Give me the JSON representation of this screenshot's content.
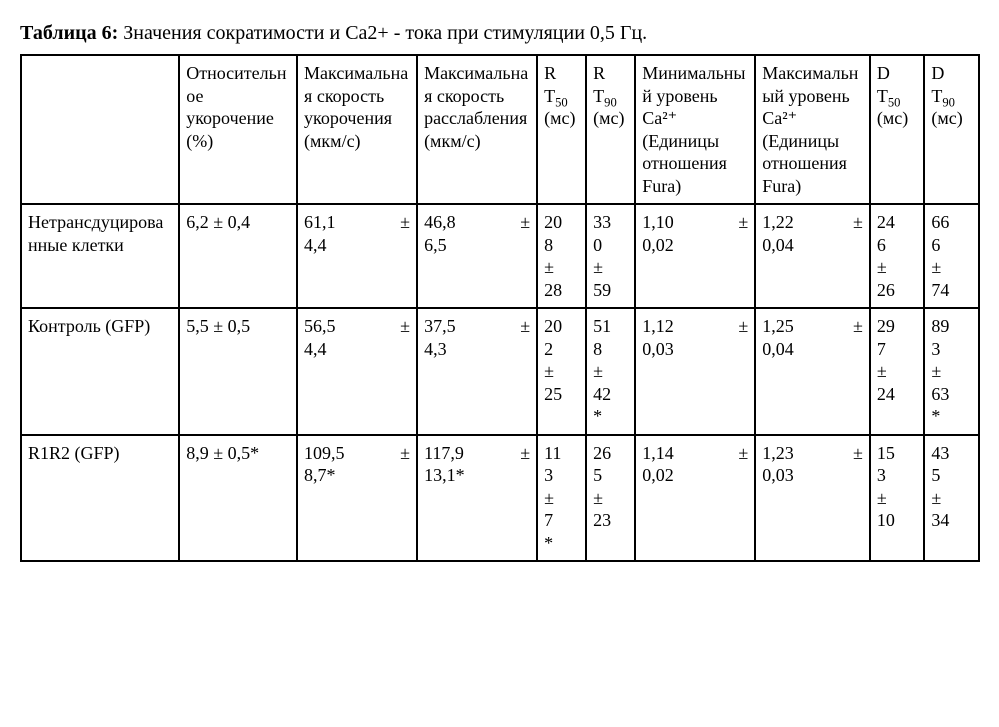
{
  "caption_label": "Таблица 6:",
  "caption_text": " Значения сократимости и Ca2+ - тока при стимуляции 0,5 Гц.",
  "table": {
    "headers": {
      "rowlabel": "",
      "otn": "Относительное укорочение (%)",
      "maxshort": "Максимальная скорость укорочения (мкм/с)",
      "maxrelax": "Максимальная скорость расслабления (мкм/с)",
      "rt5_a": "R",
      "rt5_b": "T",
      "rt5_sub": "50",
      "rt5_c": "(мс)",
      "rt9_a": "R",
      "rt9_b": "T",
      "rt9_sub": "90",
      "rt9_c": "(мс)",
      "minca": "Минимальный уровень Ca²⁺ (Единицы отношения Fura)",
      "maxca": "Максимальный уровень Ca²⁺ (Единицы отношения Fura)",
      "dt50_a": "D",
      "dt50_b": "T",
      "dt50_sub": "50",
      "dt50_c": "(мс)",
      "dt90_a": "D",
      "dt90_b": "T",
      "dt90_sub": "90",
      "dt90_c": "(мс)"
    },
    "pm": "±",
    "rows": [
      {
        "label": "Нетрансдуцированные клетки",
        "otn": "6,2 ± 0,4",
        "maxshort_a": "61,1",
        "maxshort_b": "4,4",
        "maxrelax_a": "46,8",
        "maxrelax_b": "6,5",
        "rt5": "208 ± 28",
        "rt9": "330 ± 59",
        "minca_a": "1,10",
        "minca_b": "0,02",
        "maxca_a": "1,22",
        "maxca_b": "0,04",
        "dt50": "246 ± 26",
        "dt90": "666 ± 74"
      },
      {
        "label": "Контроль (GFP)",
        "otn": "5,5 ± 0,5",
        "maxshort_a": "56,5",
        "maxshort_b": "4,4",
        "maxrelax_a": "37,5",
        "maxrelax_b": "4,3",
        "rt5": "202 ± 25",
        "rt9": "518 ± 42*",
        "minca_a": "1,12",
        "minca_b": "0,03",
        "maxca_a": "1,25",
        "maxca_b": "0,04",
        "dt50": "297 ± 24",
        "dt90": "893 ± 63*"
      },
      {
        "label": "R1R2 (GFP)",
        "otn": "8,9 ± 0,5*",
        "maxshort_a": "109,5",
        "maxshort_b": "8,7*",
        "maxrelax_a": "117,9",
        "maxrelax_b": "13,1*",
        "rt5": "113 ± 7*",
        "rt9": "265 ± 23",
        "minca_a": "1,14",
        "minca_b": "0,02",
        "maxca_a": "1,23",
        "maxca_b": "0,03",
        "dt50": "153 ± 10",
        "dt90": "435 ± 34"
      }
    ]
  },
  "style": {
    "font_family": "Times New Roman",
    "title_fontsize": 20,
    "cell_fontsize": 18,
    "border_color": "#000000",
    "background_color": "#ffffff",
    "text_color": "#000000",
    "border_width": 2,
    "column_widths_pct": {
      "rowlabel": 14.5,
      "otn": 10.8,
      "maxshort": 11,
      "maxrelax": 11,
      "rt5": 4.5,
      "rt9": 4.5,
      "minca": 11,
      "maxca": 10.5,
      "dt50": 5,
      "dt90": 5
    }
  }
}
